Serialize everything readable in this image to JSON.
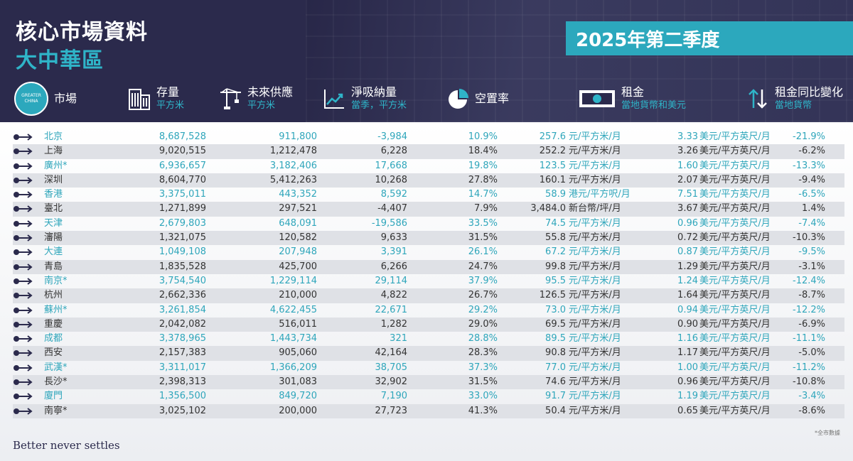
{
  "header": {
    "title_line1": "核心市場資料",
    "title_line2": "大中華區",
    "quarter": "2025年第二季度",
    "badge_text": "GREATER CHINA"
  },
  "columns": {
    "market": {
      "label": "市場"
    },
    "stock": {
      "label": "存量",
      "sub": "平方米"
    },
    "future": {
      "label": "未來供應",
      "sub": "平方米"
    },
    "absorption": {
      "label": "淨吸納量",
      "sub": "當季，平方米"
    },
    "vacancy": {
      "label": "空置率"
    },
    "rent": {
      "label": "租金",
      "sub": "當地貨幣和美元"
    },
    "rent_change": {
      "label": "租金同比變化",
      "sub": "當地貨幣"
    }
  },
  "rows": [
    {
      "city": "北京",
      "stock": "8,687,528",
      "future": "911,800",
      "absorb": "-3,984",
      "vac": "10.9%",
      "rent": "257.6",
      "unit1": "元/平方米/月",
      "usd": "3.33",
      "unit2": "美元/平方英尺/月",
      "chg": "-21.9%",
      "teal": true
    },
    {
      "city": "上海",
      "stock": "9,020,515",
      "future": "1,212,478",
      "absorb": "6,228",
      "vac": "18.4%",
      "rent": "252.2",
      "unit1": "元/平方米/月",
      "usd": "3.26",
      "unit2": "美元/平方英尺/月",
      "chg": "-6.2%",
      "teal": false
    },
    {
      "city": "廣州*",
      "stock": "6,936,657",
      "future": "3,182,406",
      "absorb": "17,668",
      "vac": "19.8%",
      "rent": "123.5",
      "unit1": "元/平方米/月",
      "usd": "1.60",
      "unit2": "美元/平方英尺/月",
      "chg": "-13.3%",
      "teal": true
    },
    {
      "city": "深圳",
      "stock": "8,604,770",
      "future": "5,412,263",
      "absorb": "10,268",
      "vac": "27.8%",
      "rent": "160.1",
      "unit1": "元/平方米/月",
      "usd": "2.07",
      "unit2": "美元/平方英尺/月",
      "chg": "-9.4%",
      "teal": false
    },
    {
      "city": "香港",
      "stock": "3,375,011",
      "future": "443,352",
      "absorb": "8,592",
      "vac": "14.7%",
      "rent": "58.9",
      "unit1": "港元/平方呎/月",
      "usd": "7.51",
      "unit2": "美元/平方英尺/月",
      "chg": "-6.5%",
      "teal": true
    },
    {
      "city": "臺北",
      "stock": "1,271,899",
      "future": "297,521",
      "absorb": "-4,407",
      "vac": "7.9%",
      "rent": "3,484.0",
      "unit1": "新台幣/坪/月",
      "usd": "3.67",
      "unit2": "美元/平方英尺/月",
      "chg": "1.4%",
      "teal": false
    },
    {
      "city": "天津",
      "stock": "2,679,803",
      "future": "648,091",
      "absorb": "-19,586",
      "vac": "33.5%",
      "rent": "74.5",
      "unit1": "元/平方米/月",
      "usd": "0.96",
      "unit2": "美元/平方英尺/月",
      "chg": "-7.4%",
      "teal": true
    },
    {
      "city": "瀋陽",
      "stock": "1,321,075",
      "future": "120,582",
      "absorb": "9,633",
      "vac": "31.5%",
      "rent": "55.8",
      "unit1": "元/平方米/月",
      "usd": "0.72",
      "unit2": "美元/平方英尺/月",
      "chg": "-10.3%",
      "teal": false
    },
    {
      "city": "大連",
      "stock": "1,049,108",
      "future": "207,948",
      "absorb": "3,391",
      "vac": "26.1%",
      "rent": "67.2",
      "unit1": "元/平方米/月",
      "usd": "0.87",
      "unit2": "美元/平方英尺/月",
      "chg": "-9.5%",
      "teal": true
    },
    {
      "city": "青島",
      "stock": "1,835,528",
      "future": "425,700",
      "absorb": "6,266",
      "vac": "24.7%",
      "rent": "99.8",
      "unit1": "元/平方米/月",
      "usd": "1.29",
      "unit2": "美元/平方英尺/月",
      "chg": "-3.1%",
      "teal": false
    },
    {
      "city": "南京*",
      "stock": "3,754,540",
      "future": "1,229,114",
      "absorb": "29,114",
      "vac": "37.9%",
      "rent": "95.5",
      "unit1": "元/平方米/月",
      "usd": "1.24",
      "unit2": "美元/平方英尺/月",
      "chg": "-12.4%",
      "teal": true
    },
    {
      "city": "杭州",
      "stock": "2,662,336",
      "future": "210,000",
      "absorb": "4,822",
      "vac": "26.7%",
      "rent": "126.5",
      "unit1": "元/平方米/月",
      "usd": "1.64",
      "unit2": "美元/平方英尺/月",
      "chg": "-8.7%",
      "teal": false
    },
    {
      "city": "蘇州*",
      "stock": "3,261,854",
      "future": "4,622,455",
      "absorb": "22,671",
      "vac": "29.2%",
      "rent": "73.0",
      "unit1": "元/平方米/月",
      "usd": "0.94",
      "unit2": "美元/平方英尺/月",
      "chg": "-12.2%",
      "teal": true
    },
    {
      "city": "重慶",
      "stock": "2,042,082",
      "future": "516,011",
      "absorb": "1,282",
      "vac": "29.0%",
      "rent": "69.5",
      "unit1": "元/平方米/月",
      "usd": "0.90",
      "unit2": "美元/平方英尺/月",
      "chg": "-6.9%",
      "teal": false
    },
    {
      "city": "成都",
      "stock": "3,378,965",
      "future": "1,443,734",
      "absorb": "321",
      "vac": "28.8%",
      "rent": "89.5",
      "unit1": "元/平方米/月",
      "usd": "1.16",
      "unit2": "美元/平方英尺/月",
      "chg": "-11.1%",
      "teal": true
    },
    {
      "city": "西安",
      "stock": "2,157,383",
      "future": "905,060",
      "absorb": "42,164",
      "vac": "28.3%",
      "rent": "90.8",
      "unit1": "元/平方米/月",
      "usd": "1.17",
      "unit2": "美元/平方英尺/月",
      "chg": "-5.0%",
      "teal": false
    },
    {
      "city": "武漢*",
      "stock": "3,311,017",
      "future": "1,366,209",
      "absorb": "38,705",
      "vac": "37.3%",
      "rent": "77.0",
      "unit1": "元/平方米/月",
      "usd": "1.00",
      "unit2": "美元/平方英尺/月",
      "chg": "-11.2%",
      "teal": true
    },
    {
      "city": "長沙*",
      "stock": "2,398,313",
      "future": "301,083",
      "absorb": "32,902",
      "vac": "31.5%",
      "rent": "74.6",
      "unit1": "元/平方米/月",
      "usd": "0.96",
      "unit2": "美元/平方英尺/月",
      "chg": "-10.8%",
      "teal": false
    },
    {
      "city": "廈門",
      "stock": "1,356,500",
      "future": "849,720",
      "absorb": "7,190",
      "vac": "33.0%",
      "rent": "91.7",
      "unit1": "元/平方米/月",
      "usd": "1.19",
      "unit2": "美元/平方英尺/月",
      "chg": "-3.4%",
      "teal": true
    },
    {
      "city": "南寧*",
      "stock": "3,025,102",
      "future": "200,000",
      "absorb": "27,723",
      "vac": "41.3%",
      "rent": "50.4",
      "unit1": "元/平方米/月",
      "usd": "0.65",
      "unit2": "美元/平方英尺/月",
      "chg": "-8.6%",
      "teal": false
    }
  ],
  "footer": {
    "brand": "Better never settles",
    "note": "*全市數據"
  },
  "colors": {
    "navy": "#2b2a4c",
    "teal": "#2ca8bd",
    "row_alt": "#dfe1e6"
  },
  "icons": {
    "market": "greater-china-badge",
    "stock": "building-icon",
    "future": "crane-icon",
    "absorption": "trend-chart-icon",
    "vacancy": "pie-chart-icon",
    "rent": "banknote-icon",
    "rent_change": "up-down-arrows-icon",
    "row": "arrow-right-icon"
  }
}
